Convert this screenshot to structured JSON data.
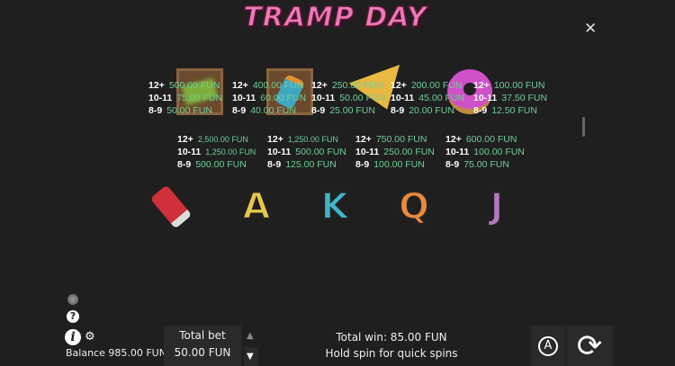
{
  "title": "TRAMP DAY",
  "close_icon": "close-icon",
  "colors": {
    "background": "#1f1f1f",
    "payout": "#6fcf97",
    "title": "#f07ab8"
  },
  "paytable_row1": [
    {
      "symbol": "cash-stack-icon",
      "lines": [
        {
          "k": "12+",
          "v": "2,500.00 FUN"
        },
        {
          "k": "10-11",
          "v": "1,250.00 FUN"
        },
        {
          "k": "8-9",
          "v": "500.00 FUN"
        }
      ]
    },
    {
      "symbol": "bottle-icon",
      "lines": [
        {
          "k": "12+",
          "v": "1,250.00 FUN"
        },
        {
          "k": "10-11",
          "v": "500.00 FUN"
        },
        {
          "k": "8-9",
          "v": "125.00 FUN"
        }
      ]
    },
    {
      "symbol": "pizza-icon",
      "lines": [
        {
          "k": "12+",
          "v": "750.00 FUN"
        },
        {
          "k": "10-11",
          "v": "250.00 FUN"
        },
        {
          "k": "8-9",
          "v": "100.00 FUN"
        }
      ]
    },
    {
      "symbol": "donut-icon",
      "lines": [
        {
          "k": "12+",
          "v": "600.00 FUN"
        },
        {
          "k": "10-11",
          "v": "100.00 FUN"
        },
        {
          "k": "8-9",
          "v": "75.00 FUN"
        }
      ]
    }
  ],
  "paytable_row2": [
    {
      "symbol": "soda-can-icon",
      "lines": [
        {
          "k": "12+",
          "v": "500.00 FUN"
        },
        {
          "k": "10-11",
          "v": "75.00 FUN"
        },
        {
          "k": "8-9",
          "v": "50.00 FUN"
        }
      ]
    },
    {
      "symbol": "letter-a-icon",
      "glyph": "A",
      "color": "#e8c84a",
      "lines": [
        {
          "k": "12+",
          "v": "400.00 FUN"
        },
        {
          "k": "10-11",
          "v": "60.00 FUN"
        },
        {
          "k": "8-9",
          "v": "40.00 FUN"
        }
      ]
    },
    {
      "symbol": "letter-k-icon",
      "glyph": "K",
      "color": "#3fb6c8",
      "lines": [
        {
          "k": "12+",
          "v": "250.00 FUN"
        },
        {
          "k": "10-11",
          "v": "50.00 FUN"
        },
        {
          "k": "8-9",
          "v": "25.00 FUN"
        }
      ]
    },
    {
      "symbol": "letter-q-icon",
      "glyph": "Q",
      "color": "#e88a3e",
      "lines": [
        {
          "k": "12+",
          "v": "200.00 FUN"
        },
        {
          "k": "10-11",
          "v": "45.00 FUN"
        },
        {
          "k": "8-9",
          "v": "20.00 FUN"
        }
      ]
    },
    {
      "symbol": "letter-j-icon",
      "glyph": "J",
      "color": "#b478c0",
      "lines": [
        {
          "k": "12+",
          "v": "100.00 FUN"
        },
        {
          "k": "10-11",
          "v": "37.50 FUN"
        },
        {
          "k": "8-9",
          "v": "12.50 FUN"
        }
      ]
    }
  ],
  "footer": {
    "balance": "Balance 985.00 FUN",
    "total_bet_label": "Total bet",
    "total_bet_value": "50.00 FUN",
    "total_win": "Total win: 85.00 FUN",
    "hint": "Hold spin for quick spins",
    "autoplay_glyph": "A"
  }
}
